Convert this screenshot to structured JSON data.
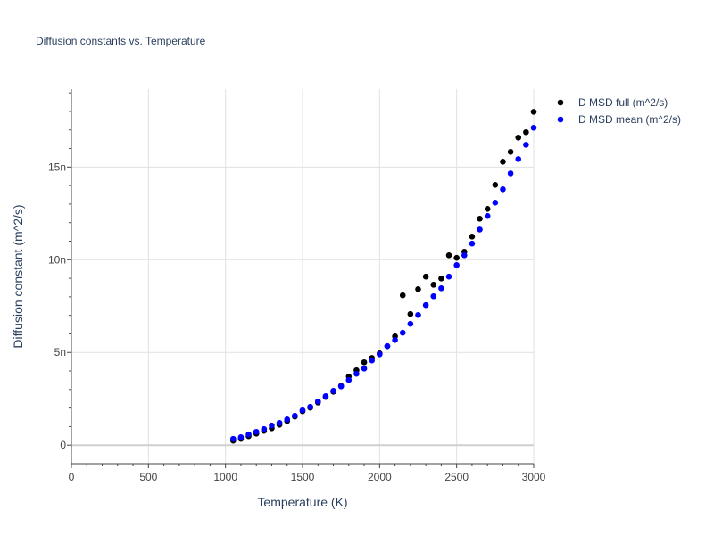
{
  "chart_data": {
    "type": "scatter",
    "title": "Diffusion constants vs. Temperature",
    "xlabel": "Temperature (K)",
    "ylabel": "Diffusion constant (m^2/s)",
    "xlim": [
      0,
      3000
    ],
    "ylim": [
      -1e-09,
      1.92e-08
    ],
    "x_ticks": [
      0,
      500,
      1000,
      1500,
      2000,
      2500,
      3000
    ],
    "x_tick_labels": [
      "0",
      "500",
      "1000",
      "1500",
      "2000",
      "2500",
      "3000"
    ],
    "y_ticks": [
      0,
      5e-09,
      1e-08,
      1.5e-08
    ],
    "y_tick_labels": [
      "0",
      "5n",
      "10n",
      "15n"
    ],
    "grid": true,
    "legend_position": "top-right-outside",
    "x": [
      1050,
      1100,
      1150,
      1200,
      1250,
      1300,
      1350,
      1400,
      1450,
      1500,
      1550,
      1600,
      1650,
      1700,
      1750,
      1800,
      1850,
      1900,
      1950,
      2000,
      2050,
      2100,
      2150,
      2200,
      2250,
      2300,
      2350,
      2400,
      2450,
      2500,
      2550,
      2600,
      2650,
      2700,
      2750,
      2800,
      2850,
      2900,
      2950,
      3000
    ],
    "series": [
      {
        "name": "D MSD full (m^2/s)",
        "color": "#000000",
        "unit_scale": 1e-09,
        "values": [
          0.24,
          0.34,
          0.48,
          0.62,
          0.77,
          0.91,
          1.1,
          1.3,
          1.54,
          1.83,
          2.02,
          2.3,
          2.6,
          2.88,
          3.2,
          3.7,
          4.04,
          4.47,
          4.7,
          4.95,
          5.34,
          5.87,
          8.08,
          7.07,
          8.41,
          9.09,
          8.65,
          8.99,
          10.24,
          10.1,
          10.43,
          11.25,
          12.21,
          12.74,
          14.04,
          15.29,
          15.82,
          16.59,
          16.88,
          17.98
        ]
      },
      {
        "name": "D MSD mean (m^2/s)",
        "color": "#0000ff",
        "unit_scale": 1e-09,
        "values": [
          0.34,
          0.43,
          0.58,
          0.72,
          0.87,
          1.06,
          1.2,
          1.39,
          1.59,
          1.88,
          2.07,
          2.36,
          2.64,
          2.93,
          3.17,
          3.51,
          3.85,
          4.13,
          4.57,
          4.9,
          5.34,
          5.67,
          6.06,
          6.54,
          7.02,
          7.55,
          8.03,
          8.46,
          9.09,
          9.71,
          10.24,
          10.87,
          11.63,
          12.36,
          13.08,
          13.8,
          14.66,
          15.43,
          16.2,
          17.12
        ]
      }
    ]
  }
}
